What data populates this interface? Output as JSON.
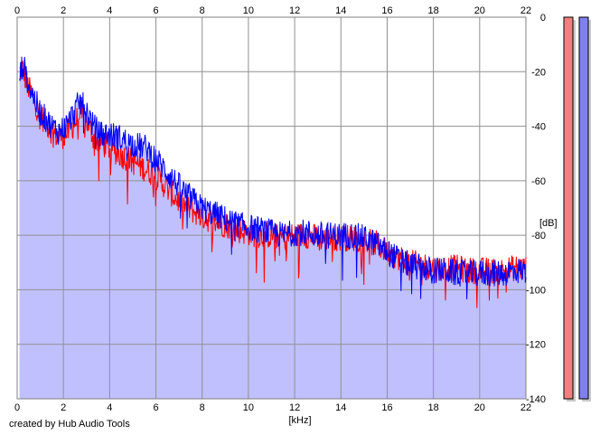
{
  "credit": "created by Hub Audio Tools",
  "chart_data": {
    "type": "line",
    "xlabel": "[kHz]",
    "ylabel": "[dB]",
    "xlim": [
      0,
      22
    ],
    "ylim": [
      -140,
      0
    ],
    "x_ticks": [
      0,
      2,
      4,
      6,
      8,
      10,
      12,
      14,
      16,
      18,
      20,
      22
    ],
    "y_ticks": [
      0,
      -20,
      -40,
      -60,
      -80,
      -100,
      -120,
      -140
    ],
    "grid": true,
    "fill_color": "#c0c0ff",
    "series": [
      {
        "color": "#ff0000",
        "x": [
          0.1,
          0.25,
          0.4,
          0.6,
          0.8,
          1.0,
          1.2,
          1.5,
          1.8,
          2.1,
          2.4,
          2.7,
          3.0,
          3.3,
          3.6,
          4.0,
          4.4,
          4.8,
          5.2,
          5.6,
          6.0,
          6.4,
          6.8,
          7.2,
          7.6,
          8.0,
          8.5,
          9.0,
          9.5,
          10.0,
          10.5,
          11.0,
          11.5,
          12.0,
          12.5,
          13.0,
          13.5,
          14.0,
          14.5,
          15.0,
          15.5,
          16.0,
          16.5,
          17.0,
          17.5,
          18.0,
          18.5,
          19.0,
          19.5,
          20.0,
          20.5,
          21.0,
          21.5,
          22.0
        ],
        "values": [
          -20,
          -19,
          -24,
          -28,
          -32,
          -36,
          -38,
          -42,
          -44,
          -43,
          -40,
          -36,
          -38,
          -44,
          -46,
          -48,
          -50,
          -52,
          -54,
          -56,
          -58,
          -62,
          -66,
          -69,
          -71,
          -73,
          -75,
          -76,
          -78,
          -79,
          -80,
          -80,
          -81,
          -80,
          -80,
          -81,
          -81,
          -81,
          -81,
          -82,
          -83,
          -86,
          -88,
          -90,
          -91,
          -92,
          -92,
          -92,
          -93,
          -93,
          -93,
          -93,
          -92,
          -92
        ]
      },
      {
        "color": "#0000ff",
        "x": [
          0.1,
          0.25,
          0.4,
          0.6,
          0.8,
          1.0,
          1.2,
          1.5,
          1.8,
          2.1,
          2.4,
          2.7,
          3.0,
          3.3,
          3.6,
          4.0,
          4.4,
          4.8,
          5.2,
          5.6,
          6.0,
          6.4,
          6.8,
          7.2,
          7.6,
          8.0,
          8.5,
          9.0,
          9.5,
          10.0,
          10.5,
          11.0,
          11.5,
          12.0,
          12.5,
          13.0,
          13.5,
          14.0,
          14.5,
          15.0,
          15.5,
          16.0,
          16.5,
          17.0,
          17.5,
          18.0,
          18.5,
          19.0,
          19.5,
          20.0,
          20.5,
          21.0,
          21.5,
          22.0
        ],
        "values": [
          -22,
          -17,
          -22,
          -27,
          -31,
          -35,
          -37,
          -40,
          -42,
          -40,
          -36,
          -31,
          -34,
          -40,
          -43,
          -43,
          -44,
          -46,
          -47,
          -48,
          -52,
          -56,
          -60,
          -64,
          -67,
          -70,
          -72,
          -74,
          -76,
          -77,
          -78,
          -79,
          -80,
          -79,
          -79,
          -80,
          -80,
          -80,
          -80,
          -81,
          -83,
          -86,
          -89,
          -91,
          -92,
          -93,
          -93,
          -94,
          -94,
          -94,
          -94,
          -94,
          -93,
          -93
        ]
      }
    ],
    "level_meters": [
      {
        "color": "#f08080",
        "level": 1.0
      },
      {
        "color": "#8080f0",
        "level": 1.0
      }
    ]
  }
}
